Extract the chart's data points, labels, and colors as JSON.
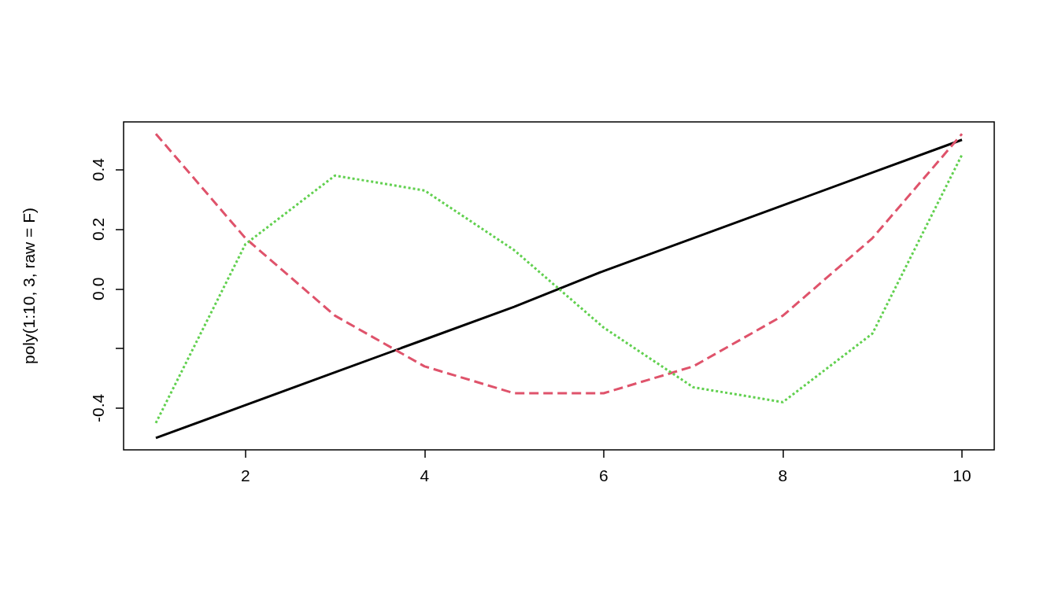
{
  "chart_data": {
    "type": "line",
    "ylabel": "poly(1:10, 3, raw = F)",
    "x": [
      1,
      2,
      3,
      4,
      5,
      6,
      7,
      8,
      9,
      10
    ],
    "series": [
      {
        "color": "#000000",
        "line_style": "solid",
        "values": [
          -0.5,
          -0.39,
          -0.28,
          -0.17,
          -0.06,
          0.06,
          0.17,
          0.28,
          0.39,
          0.5
        ]
      },
      {
        "color": "#df536b",
        "line_style": "dashed",
        "values": [
          0.52,
          0.17,
          -0.09,
          -0.26,
          -0.35,
          -0.35,
          -0.26,
          -0.09,
          0.17,
          0.52
        ]
      },
      {
        "color": "#61d04f",
        "line_style": "dotted",
        "values": [
          -0.45,
          0.15,
          0.38,
          0.33,
          0.13,
          -0.13,
          -0.33,
          -0.38,
          -0.15,
          0.45
        ]
      }
    ],
    "xlim": [
      0.64,
      10.36
    ],
    "xticks": [
      2,
      4,
      6,
      8,
      10
    ],
    "ylim": [
      -0.54,
      0.56
    ],
    "yticks": [
      {
        "value": -0.4,
        "label": "-0.4"
      },
      {
        "value": -0.2,
        "label": null
      },
      {
        "value": 0,
        "label": "0.0"
      },
      {
        "value": 0.2,
        "label": "0.2"
      },
      {
        "value": 0.4,
        "label": "0.4"
      }
    ],
    "grid": false,
    "marker": "none"
  }
}
